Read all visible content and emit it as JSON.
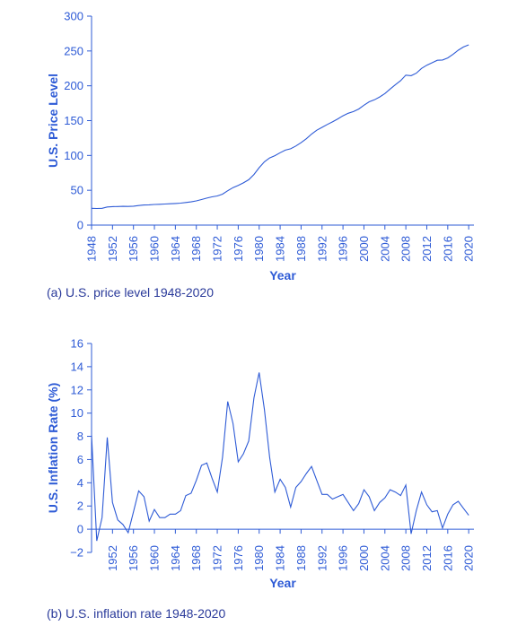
{
  "colors": {
    "axis": "#2e5bd6",
    "line": "#2e5bd6",
    "text": "#2e5bd6",
    "caption": "#2a3a9a"
  },
  "captions": {
    "a": "(a) U.S. price level 1948-2020",
    "b": "(b) U.S. inflation rate 1948-2020"
  },
  "chart_data": [
    {
      "type": "line",
      "xlabel": "Year",
      "ylabel": "U.S. Price Level",
      "ylim": [
        0,
        300
      ],
      "xlim": [
        1948,
        2021
      ],
      "yticks": [
        0,
        50,
        100,
        150,
        200,
        250,
        300
      ],
      "xtick_labels": [
        "1948",
        "1952",
        "1956",
        "1960",
        "1964",
        "1968",
        "1972",
        "1976",
        "1980",
        "1984",
        "1988",
        "1992",
        "1996",
        "2000",
        "2004",
        "2008",
        "2012",
        "2016",
        "2020"
      ],
      "grid": false,
      "series": [
        {
          "x": [
            1948,
            1949,
            1950,
            1951,
            1952,
            1953,
            1954,
            1955,
            1956,
            1957,
            1958,
            1959,
            1960,
            1961,
            1962,
            1963,
            1964,
            1965,
            1966,
            1967,
            1968,
            1969,
            1970,
            1971,
            1972,
            1973,
            1974,
            1975,
            1976,
            1977,
            1978,
            1979,
            1980,
            1981,
            1982,
            1983,
            1984,
            1985,
            1986,
            1987,
            1988,
            1989,
            1990,
            1991,
            1992,
            1993,
            1994,
            1995,
            1996,
            1997,
            1998,
            1999,
            2000,
            2001,
            2002,
            2003,
            2004,
            2005,
            2006,
            2007,
            2008,
            2009,
            2010,
            2011,
            2012,
            2013,
            2014,
            2015,
            2016,
            2017,
            2018,
            2019,
            2020
          ],
          "y": [
            24.1,
            23.8,
            24.1,
            26.0,
            26.5,
            26.7,
            26.9,
            26.8,
            27.2,
            28.1,
            28.9,
            29.1,
            29.6,
            29.9,
            30.2,
            30.6,
            31.0,
            31.5,
            32.4,
            33.4,
            34.8,
            36.7,
            38.8,
            40.5,
            41.8,
            44.4,
            49.3,
            53.8,
            56.9,
            60.6,
            65.2,
            72.6,
            82.4,
            90.9,
            96.5,
            99.6,
            103.9,
            107.6,
            109.6,
            113.6,
            118.3,
            124.0,
            130.7,
            136.2,
            140.3,
            144.5,
            148.2,
            152.4,
            156.9,
            160.5,
            163.0,
            166.6,
            172.2,
            177.1,
            179.9,
            184.0,
            188.9,
            195.3,
            201.6,
            207.3,
            215.3,
            214.5,
            218.1,
            224.9,
            229.6,
            233.0,
            236.7,
            237.0,
            240.0,
            245.1,
            251.1,
            255.7,
            258.8
          ]
        }
      ]
    },
    {
      "type": "line",
      "xlabel": "Year",
      "ylabel": "U.S. Inflation Rate (%)",
      "ylim": [
        -2,
        16
      ],
      "xlim": [
        1948,
        2021
      ],
      "yticks": [
        -2,
        0,
        2,
        4,
        6,
        8,
        10,
        12,
        14,
        16
      ],
      "ytick_labels": [
        "−2",
        "0",
        "2",
        "4",
        "6",
        "8",
        "10",
        "12",
        "14",
        "16"
      ],
      "xtick_labels": [
        "1952",
        "1956",
        "1960",
        "1964",
        "1968",
        "1972",
        "1976",
        "1980",
        "1984",
        "1988",
        "1992",
        "1996",
        "2000",
        "2004",
        "2008",
        "2012",
        "2016",
        "2020"
      ],
      "grid": false,
      "series": [
        {
          "x": [
            1948,
            1949,
            1950,
            1951,
            1952,
            1953,
            1954,
            1955,
            1956,
            1957,
            1958,
            1959,
            1960,
            1961,
            1962,
            1963,
            1964,
            1965,
            1966,
            1967,
            1968,
            1969,
            1970,
            1971,
            1972,
            1973,
            1974,
            1975,
            1976,
            1977,
            1978,
            1979,
            1980,
            1981,
            1982,
            1983,
            1984,
            1985,
            1986,
            1987,
            1988,
            1989,
            1990,
            1991,
            1992,
            1993,
            1994,
            1995,
            1996,
            1997,
            1998,
            1999,
            2000,
            2001,
            2002,
            2003,
            2004,
            2005,
            2006,
            2007,
            2008,
            2009,
            2010,
            2011,
            2012,
            2013,
            2014,
            2015,
            2016,
            2017,
            2018,
            2019,
            2020
          ],
          "y": [
            8.1,
            -1.0,
            1.0,
            7.9,
            2.3,
            0.8,
            0.4,
            -0.3,
            1.5,
            3.3,
            2.8,
            0.7,
            1.7,
            1.0,
            1.0,
            1.3,
            1.3,
            1.6,
            2.9,
            3.1,
            4.2,
            5.5,
            5.7,
            4.4,
            3.2,
            6.2,
            11.0,
            9.1,
            5.8,
            6.5,
            7.6,
            11.3,
            13.5,
            10.3,
            6.2,
            3.2,
            4.3,
            3.6,
            1.9,
            3.6,
            4.1,
            4.8,
            5.4,
            4.2,
            3.0,
            3.0,
            2.6,
            2.8,
            3.0,
            2.3,
            1.6,
            2.2,
            3.4,
            2.8,
            1.6,
            2.3,
            2.7,
            3.4,
            3.2,
            2.9,
            3.8,
            -0.4,
            1.6,
            3.2,
            2.1,
            1.5,
            1.6,
            0.1,
            1.3,
            2.1,
            2.4,
            1.8,
            1.2
          ]
        }
      ]
    }
  ]
}
